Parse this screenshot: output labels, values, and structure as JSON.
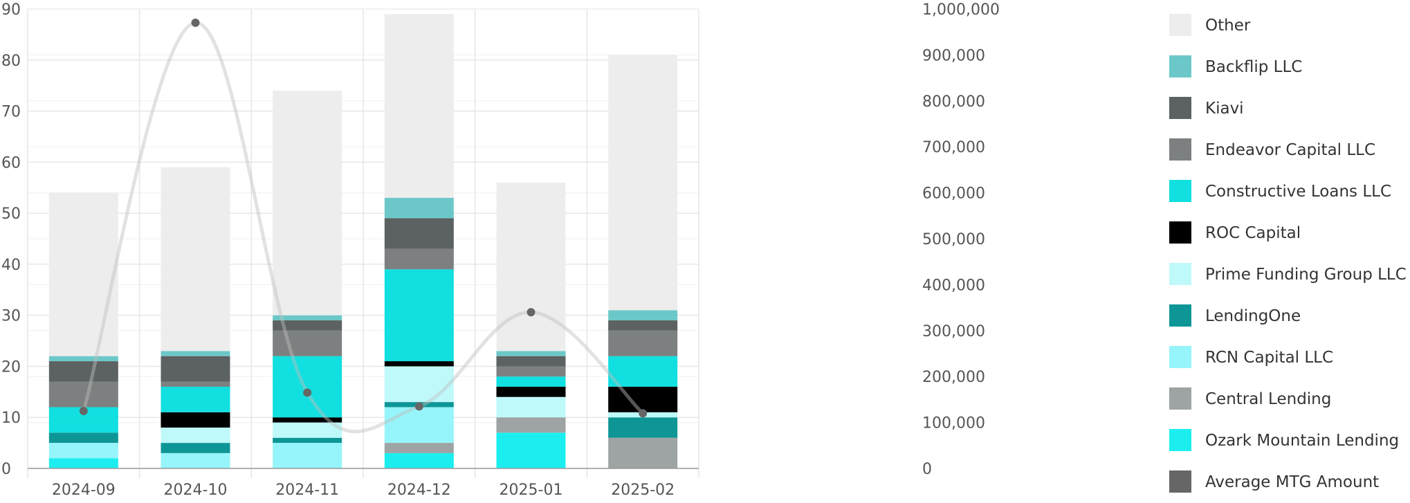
{
  "chart_data": {
    "type": "bar",
    "stacked": true,
    "categories": [
      "2024-09",
      "2024-10",
      "2024-11",
      "2024-12",
      "2025-01",
      "2025-02"
    ],
    "y_left": {
      "min": 0,
      "max": 90,
      "ticks": [
        "0",
        "10",
        "20",
        "30",
        "40",
        "50",
        "60",
        "70",
        "80",
        "90"
      ]
    },
    "y_right": {
      "min": 0,
      "max": 1000000,
      "ticks": [
        "0",
        "100,000",
        "200,000",
        "300,000",
        "400,000",
        "500,000",
        "600,000",
        "700,000",
        "800,000",
        "900,000",
        "1,000,000"
      ]
    },
    "grid": true,
    "legend_position": "right",
    "series": [
      {
        "name": "Ozark Mountain Lending",
        "color": "#1ceef0",
        "values": [
          2,
          0,
          0,
          3,
          7,
          0
        ]
      },
      {
        "name": "Central Lending",
        "color": "#9ea3a3",
        "values": [
          0,
          0,
          0,
          2,
          3,
          6
        ]
      },
      {
        "name": "RCN Capital LLC",
        "color": "#96f5fa",
        "values": [
          3,
          3,
          5,
          7,
          0,
          0
        ]
      },
      {
        "name": "LendingOne",
        "color": "#0e9696",
        "values": [
          2,
          2,
          1,
          1,
          0,
          4
        ]
      },
      {
        "name": "Prime Funding Group LLC",
        "color": "#bff9fa",
        "values": [
          0,
          3,
          3,
          7,
          4,
          1
        ]
      },
      {
        "name": "ROC Capital",
        "color": "#000000",
        "values": [
          0,
          3,
          1,
          1,
          2,
          5
        ]
      },
      {
        "name": "Constructive Loans LLC",
        "color": "#11dfe0",
        "values": [
          5,
          5,
          12,
          18,
          2,
          6
        ]
      },
      {
        "name": "Endeavor Capital LLC",
        "color": "#7c8080",
        "values": [
          5,
          1,
          5,
          4,
          2,
          5
        ]
      },
      {
        "name": "Kiavi",
        "color": "#5c6161",
        "values": [
          4,
          5,
          2,
          6,
          2,
          2
        ]
      },
      {
        "name": "Backflip LLC",
        "color": "#6cc8c8",
        "values": [
          1,
          1,
          1,
          4,
          1,
          2
        ]
      },
      {
        "name": "Other",
        "color": "#ededed",
        "values": [
          32,
          36,
          44,
          36,
          33,
          50
        ]
      }
    ],
    "line": {
      "name": "Average MTG Amount",
      "color": "#666666",
      "values": [
        125000,
        970000,
        165000,
        135000,
        340000,
        120000
      ]
    },
    "legend": [
      {
        "name": "Other",
        "color": "#ededed"
      },
      {
        "name": "Backflip LLC",
        "color": "#6cc8c8"
      },
      {
        "name": "Kiavi",
        "color": "#5c6161"
      },
      {
        "name": "Endeavor Capital LLC",
        "color": "#7c8080"
      },
      {
        "name": "Constructive Loans LLC",
        "color": "#11dfe0"
      },
      {
        "name": "ROC Capital",
        "color": "#000000"
      },
      {
        "name": "Prime Funding Group LLC",
        "color": "#bff9fa"
      },
      {
        "name": "LendingOne",
        "color": "#0e9696"
      },
      {
        "name": "RCN Capital LLC",
        "color": "#96f5fa"
      },
      {
        "name": "Central Lending",
        "color": "#9ea3a3"
      },
      {
        "name": "Ozark Mountain Lending",
        "color": "#1ceef0"
      },
      {
        "name": "Average MTG Amount",
        "color": "#666666"
      }
    ]
  }
}
